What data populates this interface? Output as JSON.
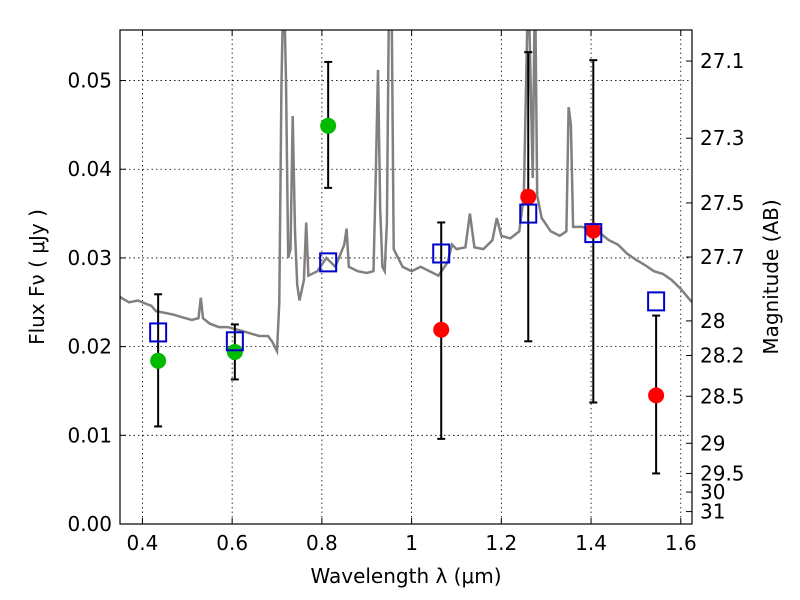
{
  "chart_data": {
    "type": "scatter",
    "xlabel": "Wavelength  λ (μm)",
    "ylabel": "Flux  Fν  ( μJy )",
    "ylabel_right": "Magnitude (AB)",
    "xlim": [
      0.35,
      1.625
    ],
    "ylim": [
      0.0,
      0.0557
    ],
    "x_ticks": [
      0.4,
      0.6,
      0.8,
      1.0,
      1.2,
      1.4,
      1.6
    ],
    "x_tick_labels": [
      "0.4",
      "0.6",
      "0.8",
      "1",
      "1.2",
      "1.4",
      "1.6"
    ],
    "y_ticks": [
      0.0,
      0.01,
      0.02,
      0.03,
      0.04,
      0.05
    ],
    "y_tick_labels": [
      "0.00",
      "0.01",
      "0.02",
      "0.03",
      "0.04",
      "0.05"
    ],
    "right_ticks": [
      {
        "label": "27.1",
        "flux": 0.0522
      },
      {
        "label": "27.3",
        "flux": 0.0435
      },
      {
        "label": "27.5",
        "flux": 0.0362
      },
      {
        "label": "27.7",
        "flux": 0.0301
      },
      {
        "label": "28",
        "flux": 0.0229
      },
      {
        "label": "28.2",
        "flux": 0.019
      },
      {
        "label": "28.5",
        "flux": 0.0144
      },
      {
        "label": "29",
        "flux": 0.0091
      },
      {
        "label": "29.5",
        "flux": 0.0057
      },
      {
        "label": "30",
        "flux": 0.0036
      },
      {
        "label": "31",
        "flux": 0.0014
      }
    ],
    "grid": true,
    "series": [
      {
        "marker": "filled-circle",
        "color": "#00bb00",
        "points": [
          {
            "x": 0.435,
            "y": 0.0184,
            "err_low": 0.011,
            "err_high": 0.0259
          },
          {
            "x": 0.606,
            "y": 0.0194,
            "err_low": 0.0163,
            "err_high": 0.0225
          },
          {
            "x": 0.814,
            "y": 0.0449,
            "err_low": 0.0379,
            "err_high": 0.0521
          }
        ]
      },
      {
        "marker": "filled-circle",
        "color": "#ff0000",
        "points": [
          {
            "x": 1.066,
            "y": 0.0219,
            "err_low": 0.0096,
            "err_high": 0.034
          },
          {
            "x": 1.26,
            "y": 0.0369,
            "err_low": 0.0206,
            "err_high": 0.0532
          },
          {
            "x": 1.405,
            "y": 0.0331,
            "err_low": 0.0137,
            "err_high": 0.0523
          },
          {
            "x": 1.545,
            "y": 0.0145,
            "err_low": 0.0057,
            "err_high": 0.0235
          }
        ]
      },
      {
        "marker": "open-square",
        "color": "#0000cc",
        "points": [
          {
            "x": 0.435,
            "y": 0.0216
          },
          {
            "x": 0.606,
            "y": 0.0206
          },
          {
            "x": 0.814,
            "y": 0.0295
          },
          {
            "x": 1.066,
            "y": 0.0305
          },
          {
            "x": 1.26,
            "y": 0.035
          },
          {
            "x": 1.405,
            "y": 0.0328
          },
          {
            "x": 1.545,
            "y": 0.0251
          }
        ]
      },
      {
        "type": "line",
        "color": "#808080",
        "points": [
          [
            0.35,
            0.0256
          ],
          [
            0.37,
            0.025
          ],
          [
            0.39,
            0.0252
          ],
          [
            0.41,
            0.0248
          ],
          [
            0.42,
            0.0246
          ],
          [
            0.43,
            0.024
          ],
          [
            0.45,
            0.0238
          ],
          [
            0.47,
            0.0236
          ],
          [
            0.49,
            0.0233
          ],
          [
            0.51,
            0.023
          ],
          [
            0.525,
            0.0232
          ],
          [
            0.53,
            0.0255
          ],
          [
            0.535,
            0.0232
          ],
          [
            0.55,
            0.0226
          ],
          [
            0.57,
            0.0222
          ],
          [
            0.59,
            0.0222
          ],
          [
            0.62,
            0.0218
          ],
          [
            0.64,
            0.0215
          ],
          [
            0.66,
            0.0212
          ],
          [
            0.68,
            0.0212
          ],
          [
            0.69,
            0.0205
          ],
          [
            0.7,
            0.0195
          ],
          [
            0.705,
            0.025
          ],
          [
            0.71,
            0.05
          ],
          [
            0.715,
            0.062
          ],
          [
            0.72,
            0.05
          ],
          [
            0.725,
            0.03
          ],
          [
            0.73,
            0.031
          ],
          [
            0.735,
            0.046
          ],
          [
            0.74,
            0.033
          ],
          [
            0.745,
            0.027
          ],
          [
            0.75,
            0.0252
          ],
          [
            0.76,
            0.0275
          ],
          [
            0.765,
            0.034
          ],
          [
            0.77,
            0.028
          ],
          [
            0.79,
            0.0285
          ],
          [
            0.81,
            0.03
          ],
          [
            0.83,
            0.029
          ],
          [
            0.85,
            0.0315
          ],
          [
            0.855,
            0.0333
          ],
          [
            0.86,
            0.029
          ],
          [
            0.88,
            0.0285
          ],
          [
            0.9,
            0.0283
          ],
          [
            0.915,
            0.0285
          ],
          [
            0.92,
            0.039
          ],
          [
            0.925,
            0.0512
          ],
          [
            0.93,
            0.0355
          ],
          [
            0.935,
            0.029
          ],
          [
            0.94,
            0.0285
          ],
          [
            0.945,
            0.034
          ],
          [
            0.95,
            0.062
          ],
          [
            0.955,
            0.062
          ],
          [
            0.96,
            0.031
          ],
          [
            0.98,
            0.029
          ],
          [
            1.0,
            0.0285
          ],
          [
            1.02,
            0.029
          ],
          [
            1.04,
            0.0285
          ],
          [
            1.06,
            0.028
          ],
          [
            1.08,
            0.0295
          ],
          [
            1.09,
            0.0315
          ],
          [
            1.1,
            0.031
          ],
          [
            1.12,
            0.0312
          ],
          [
            1.13,
            0.035
          ],
          [
            1.14,
            0.0312
          ],
          [
            1.16,
            0.031
          ],
          [
            1.18,
            0.032
          ],
          [
            1.19,
            0.0345
          ],
          [
            1.2,
            0.0325
          ],
          [
            1.22,
            0.0322
          ],
          [
            1.24,
            0.033
          ],
          [
            1.25,
            0.037
          ],
          [
            1.26,
            0.062
          ],
          [
            1.27,
            0.039
          ],
          [
            1.275,
            0.062
          ],
          [
            1.28,
            0.037
          ],
          [
            1.29,
            0.0345
          ],
          [
            1.31,
            0.033
          ],
          [
            1.33,
            0.0325
          ],
          [
            1.345,
            0.033
          ],
          [
            1.35,
            0.047
          ],
          [
            1.355,
            0.045
          ],
          [
            1.36,
            0.0335
          ],
          [
            1.38,
            0.0335
          ],
          [
            1.4,
            0.0332
          ],
          [
            1.42,
            0.0328
          ],
          [
            1.44,
            0.032
          ],
          [
            1.46,
            0.0315
          ],
          [
            1.48,
            0.0305
          ],
          [
            1.5,
            0.0298
          ],
          [
            1.52,
            0.0292
          ],
          [
            1.54,
            0.0285
          ],
          [
            1.56,
            0.0282
          ],
          [
            1.58,
            0.0275
          ],
          [
            1.6,
            0.0265
          ],
          [
            1.625,
            0.025
          ]
        ]
      }
    ]
  }
}
